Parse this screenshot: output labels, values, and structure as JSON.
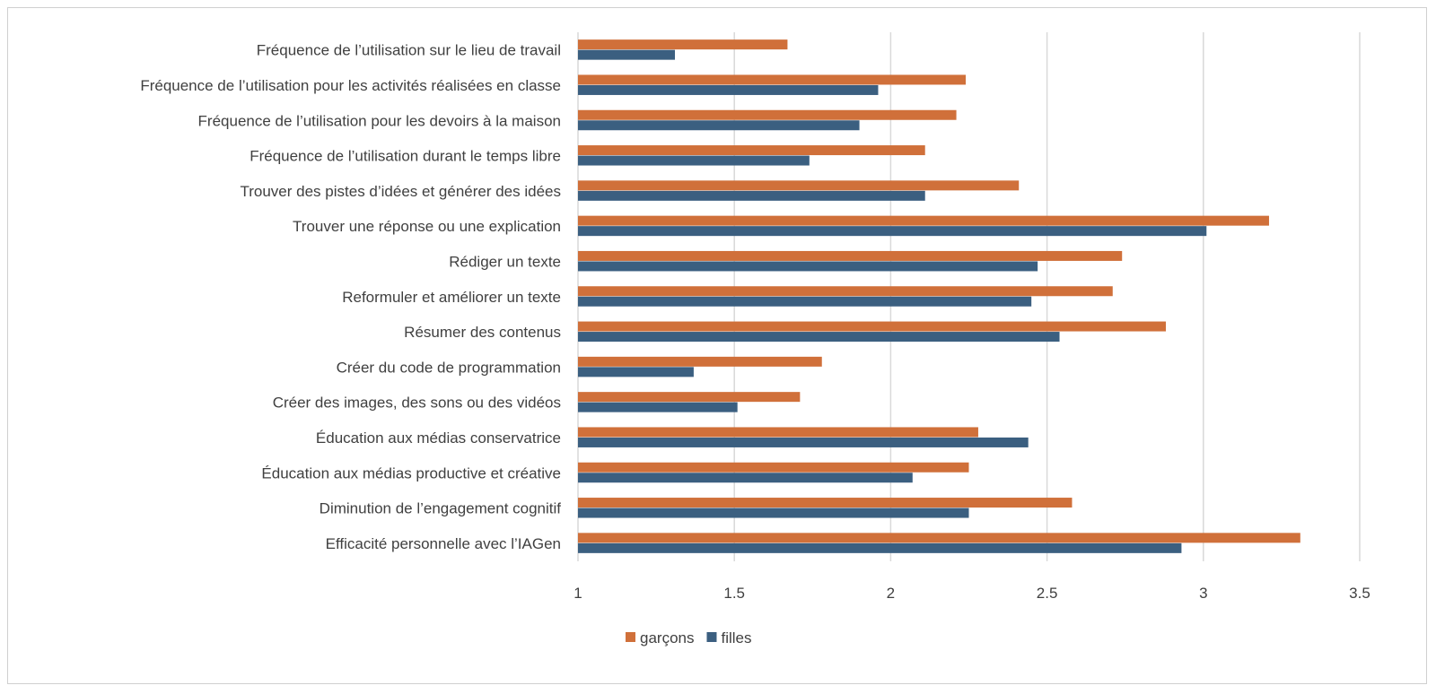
{
  "chart_data": {
    "type": "bar",
    "orientation": "horizontal",
    "title": "",
    "xlabel": "",
    "ylabel": "",
    "xlim": [
      1,
      3.5
    ],
    "xticks": [
      "1",
      "1.5",
      "2",
      "2.5",
      "3",
      "3.5"
    ],
    "grid": true,
    "legend_position": "bottom",
    "categories": [
      "Fréquence de l’utilisation sur le lieu de travail",
      "Fréquence de l’utilisation pour les activités réalisées en classe",
      "Fréquence de l’utilisation pour les devoirs à la maison",
      "Fréquence de l’utilisation durant le temps libre",
      "Trouver des pistes d’idées et générer des idées",
      "Trouver une réponse ou une explication",
      "Rédiger un texte",
      "Reformuler et améliorer un texte",
      "Résumer des contenus",
      "Créer du code de programmation",
      "Créer des images, des sons ou des vidéos",
      "Éducation aux médias conservatrice",
      "Éducation aux médias productive et créative",
      "Diminution de l’engagement cognitif",
      "Efficacité personnelle avec l’IAGen"
    ],
    "series": [
      {
        "name": "garçons",
        "color": "#D0703A",
        "values": [
          1.67,
          2.24,
          2.21,
          2.11,
          2.41,
          3.21,
          2.74,
          2.71,
          2.88,
          1.78,
          1.71,
          2.28,
          2.25,
          2.58,
          3.31
        ]
      },
      {
        "name": "filles",
        "color": "#3B5F80",
        "values": [
          1.31,
          1.96,
          1.9,
          1.74,
          2.11,
          3.01,
          2.47,
          2.45,
          2.54,
          1.37,
          1.51,
          2.44,
          2.07,
          2.25,
          2.93
        ]
      }
    ]
  }
}
